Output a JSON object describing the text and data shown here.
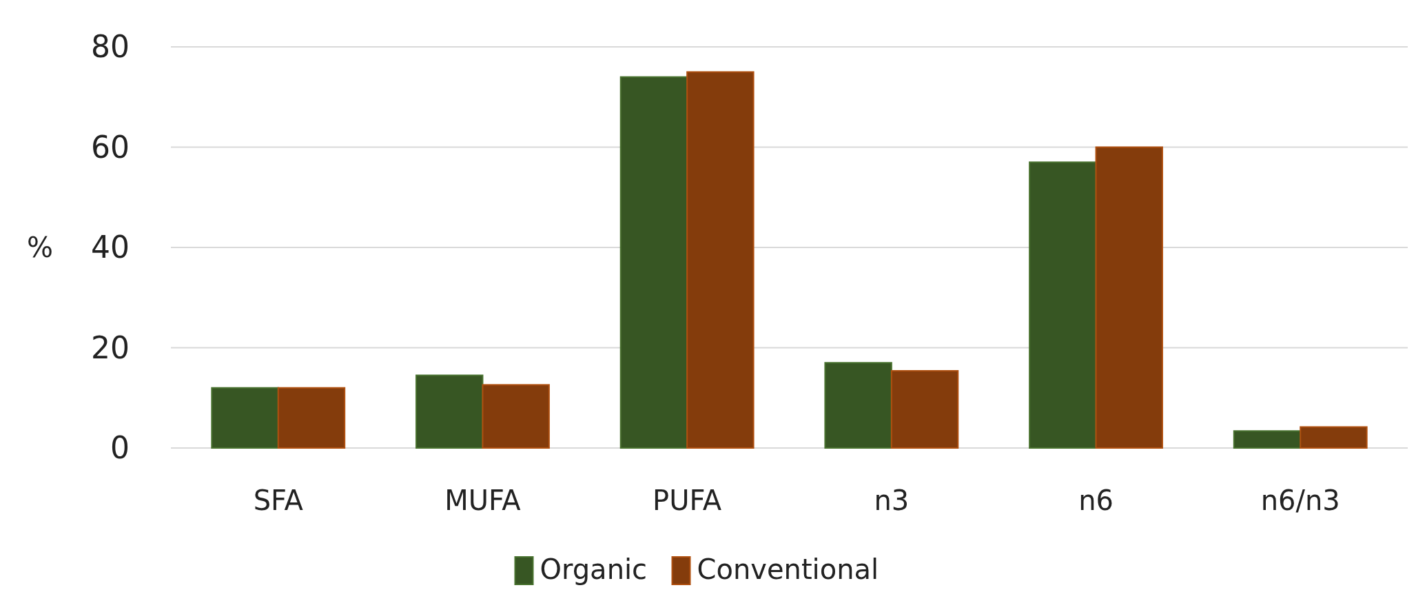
{
  "chart_data": {
    "type": "bar",
    "ylabel": "%",
    "categories": [
      "SFA",
      "MUFA",
      "PUFA",
      "n3",
      "n6",
      "n6/n3"
    ],
    "series": [
      {
        "name": "Organic",
        "color": "#375623",
        "values": [
          12,
          14.5,
          74,
          17,
          57,
          3.4
        ]
      },
      {
        "name": "Conventional",
        "color": "#843c0c",
        "values": [
          12,
          12.6,
          75,
          15.4,
          60,
          4.2
        ]
      }
    ],
    "ylim": [
      0,
      80
    ],
    "yticks": [
      0,
      20,
      40,
      60,
      80
    ],
    "grid": "y",
    "legend": "bottom"
  }
}
